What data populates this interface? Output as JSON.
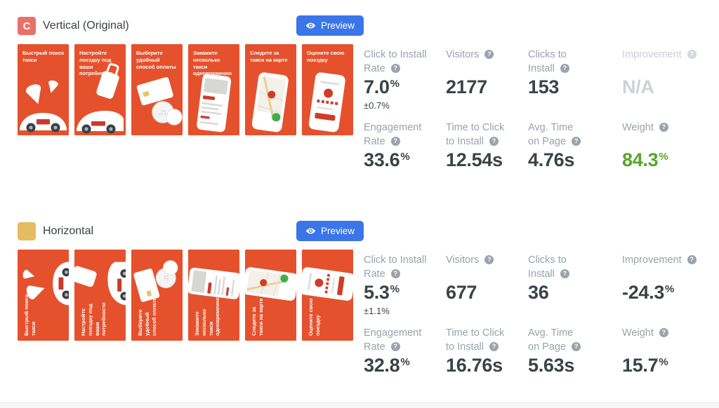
{
  "icons": {
    "help": "?",
    "preview_eye": "eye-icon"
  },
  "colors": {
    "accent_blue": "#3a76e8",
    "creative_orange": "#e5512c",
    "brand_red": "#cf3a2a",
    "green": "#58a52c",
    "badge_vertical": "#ea7168",
    "badge_horizontal": "#e7bb60",
    "label_gray": "#99a2aa",
    "value_dark": "#3c4247",
    "dim_gray": "#ccd2d7"
  },
  "variants": [
    {
      "badge_letter": "C",
      "badge_color": "#ea7168",
      "title": "Vertical (Original)",
      "orientation": "vertical",
      "preview_label": "Preview",
      "thumbnails": [
        {
          "caption": "Быстрый поиск такси",
          "kind": "pins-car"
        },
        {
          "caption": "Настройте поездку под ваши потребности",
          "kind": "suitcase-car"
        },
        {
          "caption": "Выберите удобный способ оплаты",
          "kind": "card-coins"
        },
        {
          "caption": "Закажите несколько такси одновременно",
          "kind": "phone-list"
        },
        {
          "caption": "Следите за такси на карте",
          "kind": "phone-map"
        },
        {
          "caption": "Оцените свою поездку",
          "kind": "phone-rate"
        }
      ],
      "metric_rows": [
        [
          {
            "label_lines": [
              "Click to Install",
              "Rate"
            ],
            "value": "7.0",
            "unit": "%",
            "sub": "±0.7%",
            "tone": "normal"
          },
          {
            "label_lines": [
              "Visitors"
            ],
            "value": "2177",
            "unit": "",
            "tone": "normal"
          },
          {
            "label_lines": [
              "Clicks to",
              "Install"
            ],
            "value": "153",
            "unit": "",
            "tone": "normal"
          },
          {
            "label_lines": [
              "Improvement"
            ],
            "value": "N/A",
            "unit": "",
            "tone": "dim"
          }
        ],
        [
          {
            "label_lines": [
              "Engagement",
              "Rate"
            ],
            "value": "33.6",
            "unit": "%",
            "tone": "normal"
          },
          {
            "label_lines": [
              "Time to Click",
              "to Install"
            ],
            "value": "12.54",
            "unit": "s",
            "tone": "normal"
          },
          {
            "label_lines": [
              "Avg. Time",
              "on Page"
            ],
            "value": "4.76",
            "unit": "s",
            "tone": "normal"
          },
          {
            "label_lines": [
              "Weight"
            ],
            "value": "84.3",
            "unit": "%",
            "tone": "green"
          }
        ]
      ]
    },
    {
      "badge_letter": "",
      "badge_color": "#e7bb60",
      "title": "Horizontal",
      "orientation": "horizontal",
      "preview_label": "Preview",
      "thumbnails": [
        {
          "caption": "Быстрый поиск такси",
          "kind": "pins-car"
        },
        {
          "caption": "Настройте поездку под ваши потребности",
          "kind": "suitcase-car"
        },
        {
          "caption": "Выберите удобный способ оплаты",
          "kind": "card-coins"
        },
        {
          "caption": "Закажите несколько такси одновременно",
          "kind": "phone-list"
        },
        {
          "caption": "Следите за такси на карте",
          "kind": "phone-map"
        },
        {
          "caption": "Оцените свою поездку",
          "kind": "phone-rate"
        }
      ],
      "metric_rows": [
        [
          {
            "label_lines": [
              "Click to Install",
              "Rate"
            ],
            "value": "5.3",
            "unit": "%",
            "sub": "±1.1%",
            "tone": "normal"
          },
          {
            "label_lines": [
              "Visitors"
            ],
            "value": "677",
            "unit": "",
            "tone": "normal"
          },
          {
            "label_lines": [
              "Clicks to",
              "Install"
            ],
            "value": "36",
            "unit": "",
            "tone": "normal"
          },
          {
            "label_lines": [
              "Improvement"
            ],
            "value": "-24.3",
            "unit": "%",
            "tone": "normal"
          }
        ],
        [
          {
            "label_lines": [
              "Engagement",
              "Rate"
            ],
            "value": "32.8",
            "unit": "%",
            "tone": "normal"
          },
          {
            "label_lines": [
              "Time to Click",
              "to Install"
            ],
            "value": "16.76",
            "unit": "s",
            "tone": "normal"
          },
          {
            "label_lines": [
              "Avg. Time",
              "on Page"
            ],
            "value": "5.63",
            "unit": "s",
            "tone": "normal"
          },
          {
            "label_lines": [
              "Weight"
            ],
            "value": "15.7",
            "unit": "%",
            "tone": "normal"
          }
        ]
      ]
    }
  ]
}
